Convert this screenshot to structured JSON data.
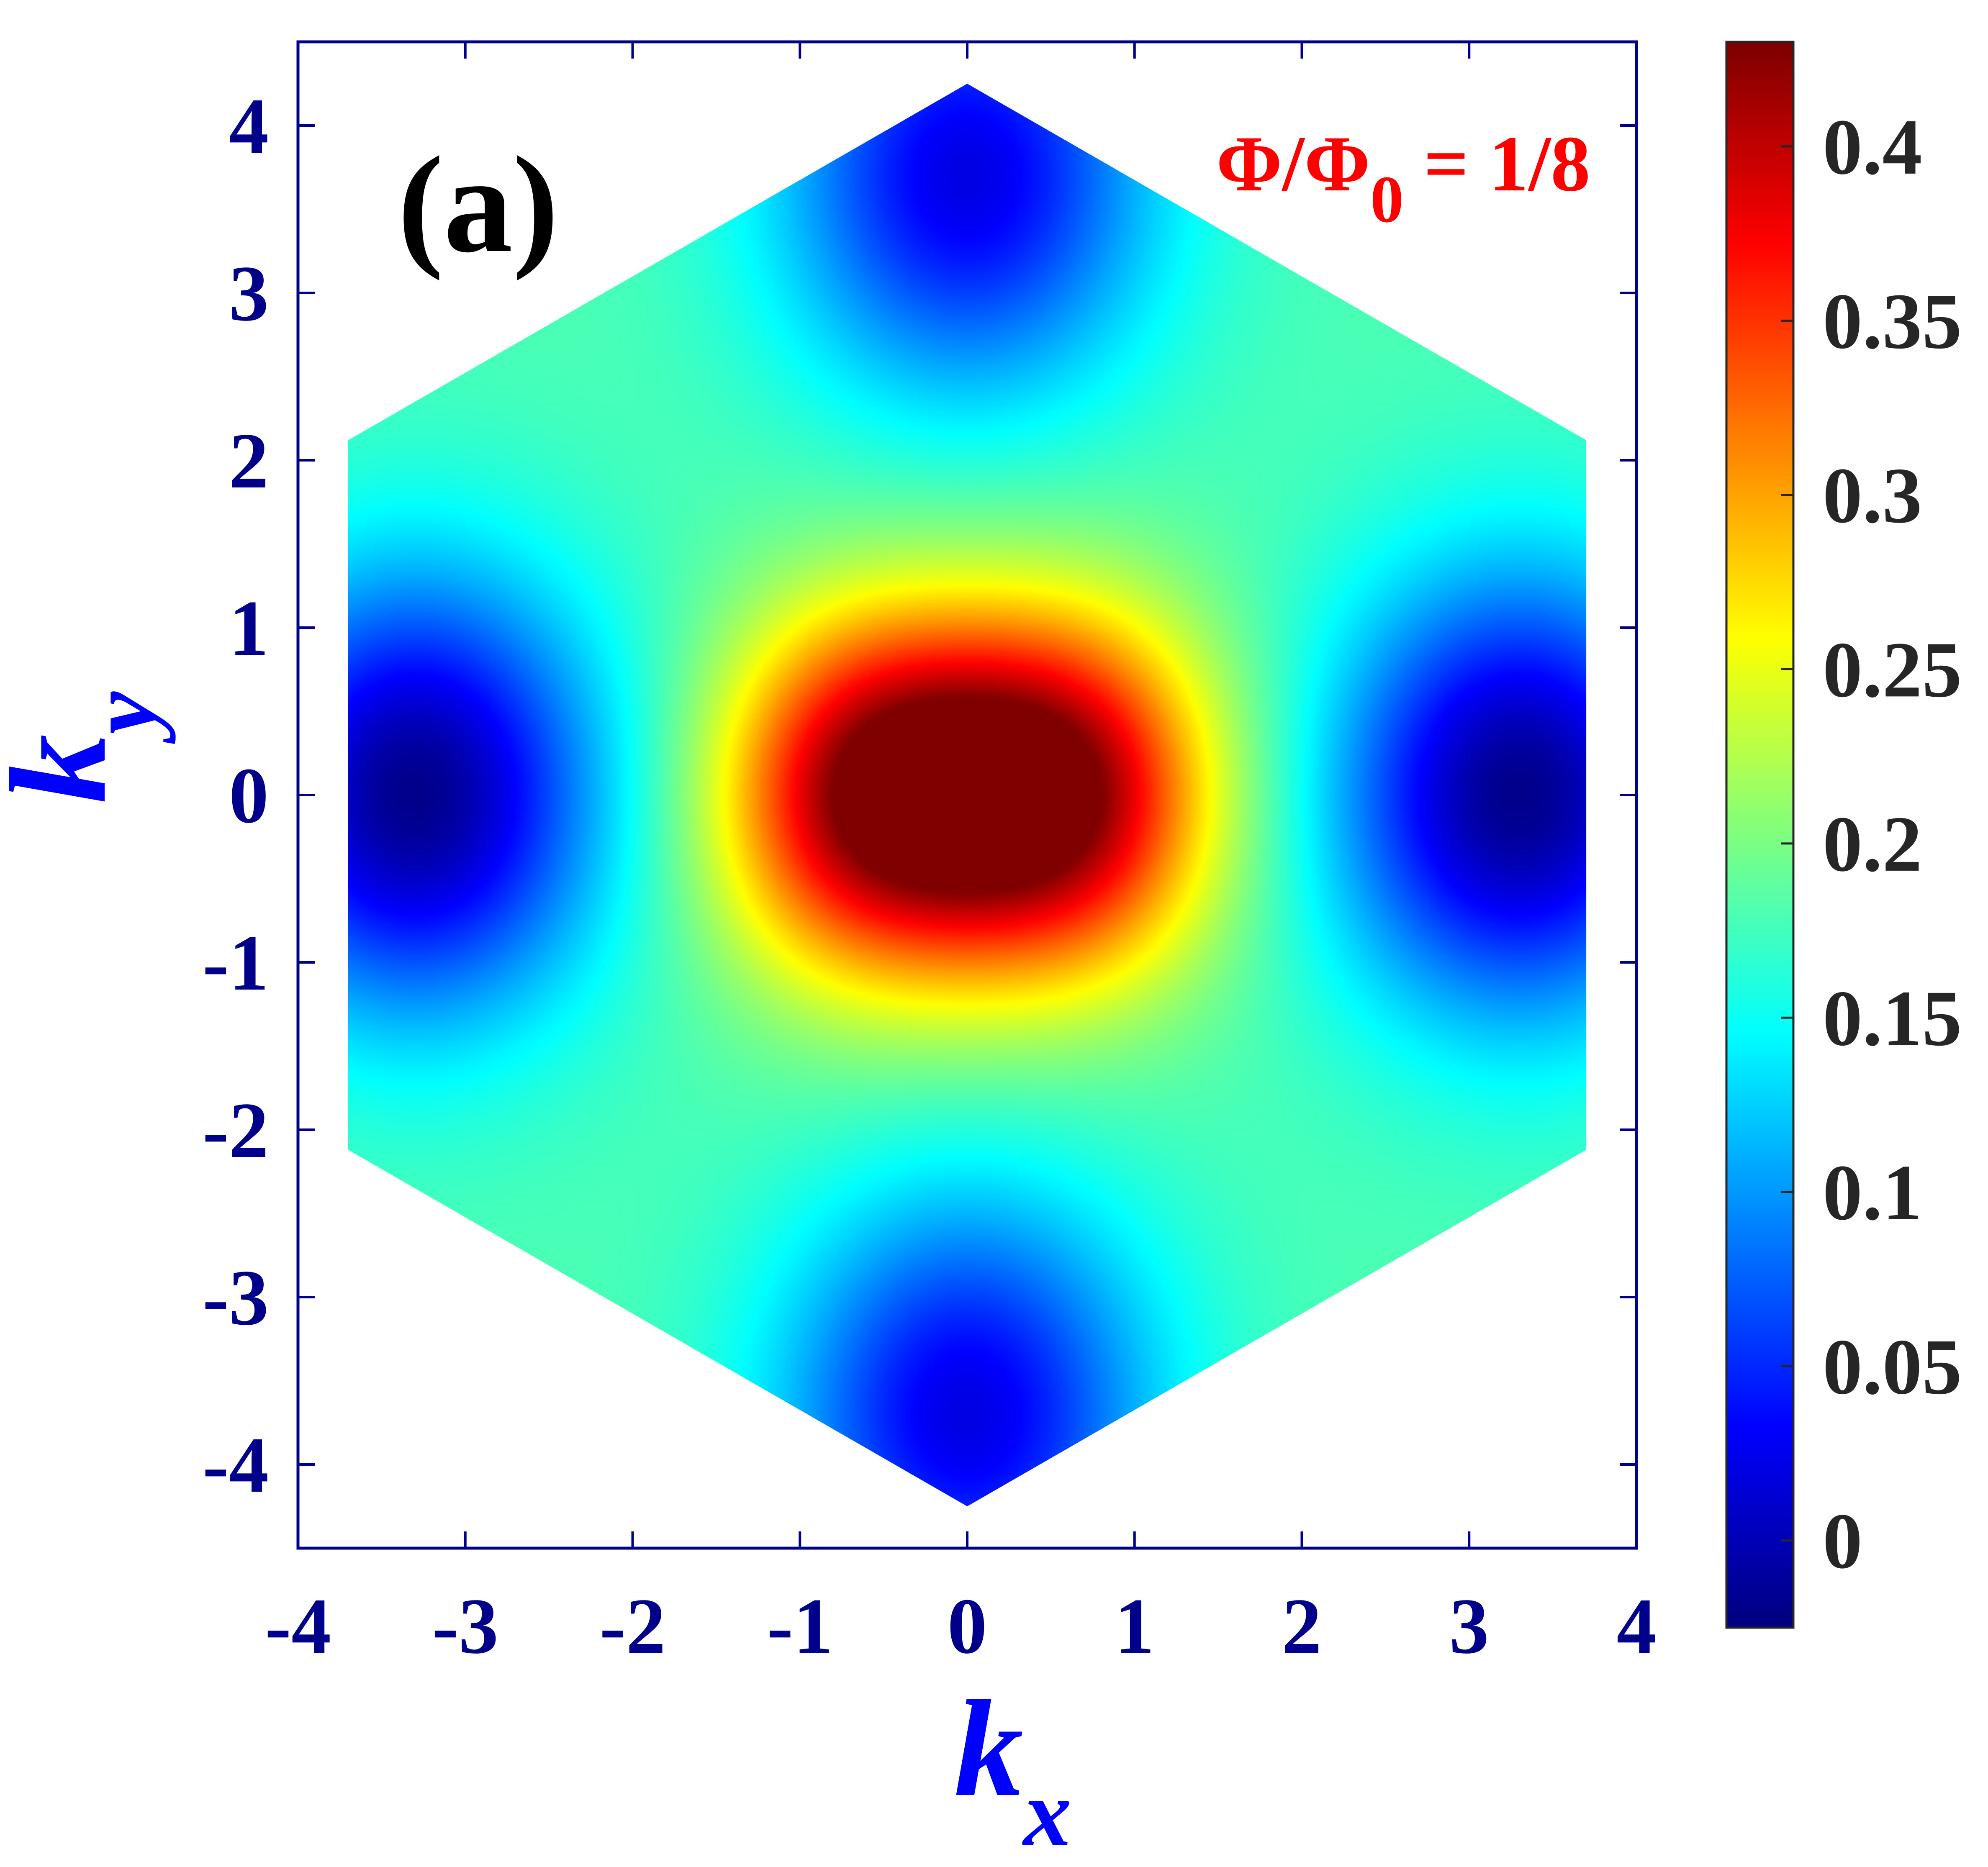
{
  "chart_data": {
    "type": "heatmap",
    "panel_label": "(a)",
    "annotation": {
      "main": "Φ/Φ",
      "subscript": "0",
      "suffix": " = 1/8",
      "color": "#ff0000"
    },
    "xlabel": {
      "main": "k",
      "sub": "x"
    },
    "ylabel": {
      "main": "k",
      "sub": "y"
    },
    "xlim": [
      -4,
      4
    ],
    "ylim": [
      -4.5,
      4.5
    ],
    "x_ticks": [
      -4,
      -3,
      -2,
      -1,
      0,
      1,
      2,
      3,
      4
    ],
    "x_tick_labels": [
      "-4",
      "-3",
      "-2",
      "-1",
      "0",
      "1",
      "2",
      "3",
      "4"
    ],
    "y_ticks": [
      4,
      3,
      2,
      1,
      0,
      -1,
      -2,
      -3,
      -4
    ],
    "y_tick_labels": [
      "4",
      "3",
      "2",
      "1",
      "0",
      "-1",
      "-2",
      "-3",
      "-4"
    ],
    "colorbar": {
      "range": [
        -0.025,
        0.43
      ],
      "ticks": [
        0,
        0.05,
        0.1,
        0.15,
        0.2,
        0.25,
        0.3,
        0.35,
        0.4
      ],
      "tick_labels": [
        "0",
        "0.05",
        "0.1",
        "0.15",
        "0.2",
        "0.25",
        "0.3",
        "0.35",
        "0.4"
      ],
      "colormap": "jet"
    },
    "domain": {
      "shape": "hexagon",
      "vertices": [
        [
          0,
          4.25
        ],
        [
          3.7,
          2.12
        ],
        [
          3.7,
          -2.12
        ],
        [
          0,
          -4.25
        ],
        [
          -3.7,
          -2.12
        ],
        [
          -3.7,
          2.12
        ]
      ]
    },
    "field_features": [
      {
        "kind": "maximum",
        "x": -0.55,
        "y": 0,
        "value": 0.425
      },
      {
        "kind": "maximum",
        "x": 0.55,
        "y": 0,
        "value": 0.425
      },
      {
        "kind": "minimum",
        "x": 0,
        "y": 3.7,
        "value": 0.02
      },
      {
        "kind": "minimum",
        "x": 0,
        "y": -3.7,
        "value": 0.02
      },
      {
        "kind": "minimum",
        "x": -3.3,
        "y": 0,
        "value": -0.02
      },
      {
        "kind": "minimum",
        "x": 3.3,
        "y": 0,
        "value": -0.02
      }
    ],
    "grid": false,
    "colors": {
      "axis": "#00008b",
      "axis_label": "#0000ff",
      "tick_label": "#00008b",
      "colorbar_label": "#262626"
    }
  }
}
